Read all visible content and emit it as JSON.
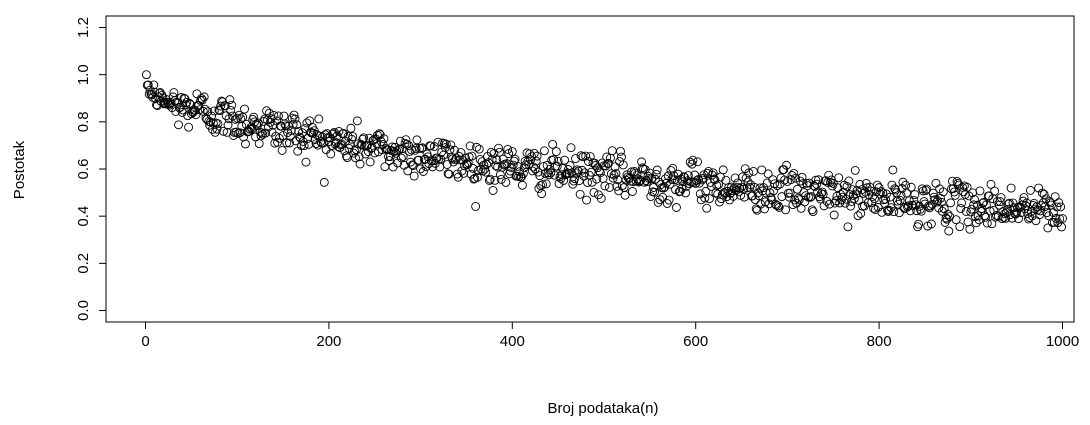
{
  "chart_data": {
    "type": "scatter",
    "title": "",
    "xlabel": "Broj podataka(n)",
    "ylabel": "Postotak",
    "xlim": [
      0,
      1000
    ],
    "ylim": [
      0.0,
      1.2
    ],
    "xticks": [
      0,
      200,
      400,
      600,
      800,
      1000
    ],
    "xtick_labels": [
      "0",
      "200",
      "400",
      "600",
      "800",
      "1000"
    ],
    "yticks": [
      0.0,
      0.2,
      0.4,
      0.6,
      0.8,
      1.0,
      1.2
    ],
    "ytick_labels": [
      "0.0",
      "0.2",
      "0.4",
      "0.6",
      "0.8",
      "1.0",
      "1.2"
    ],
    "grid": false,
    "legend": "none",
    "marker": "open-circle",
    "marker_color": "#000000",
    "n_points": 1000,
    "x": [
      1,
      2,
      3,
      4,
      5,
      6,
      7,
      8,
      9,
      10,
      20,
      30,
      40,
      50,
      60,
      70,
      80,
      90,
      100,
      110,
      120,
      130,
      140,
      150,
      160,
      170,
      180,
      190,
      200,
      210,
      220,
      230,
      240,
      250,
      260,
      270,
      280,
      290,
      300,
      310,
      320,
      330,
      340,
      350,
      360,
      370,
      380,
      390,
      400,
      410,
      420,
      430,
      440,
      450,
      460,
      470,
      480,
      490,
      500,
      510,
      520,
      530,
      540,
      550,
      560,
      570,
      580,
      590,
      600,
      610,
      620,
      630,
      640,
      650,
      660,
      670,
      680,
      690,
      700,
      710,
      720,
      730,
      740,
      750,
      760,
      770,
      780,
      790,
      800,
      810,
      820,
      830,
      840,
      850,
      860,
      870,
      880,
      890,
      900,
      910,
      920,
      930,
      940,
      950,
      960,
      970,
      980,
      990,
      1000
    ],
    "y": [
      0.98,
      0.97,
      0.95,
      0.94,
      0.93,
      0.92,
      0.91,
      0.92,
      0.93,
      0.9,
      0.89,
      0.87,
      0.86,
      0.86,
      0.85,
      0.84,
      0.82,
      0.82,
      0.81,
      0.79,
      0.78,
      0.79,
      0.77,
      0.76,
      0.76,
      0.75,
      0.74,
      0.73,
      0.72,
      0.71,
      0.71,
      0.7,
      0.7,
      0.69,
      0.68,
      0.67,
      0.67,
      0.67,
      0.66,
      0.66,
      0.65,
      0.64,
      0.64,
      0.63,
      0.63,
      0.62,
      0.62,
      0.61,
      0.61,
      0.6,
      0.6,
      0.6,
      0.6,
      0.59,
      0.59,
      0.58,
      0.58,
      0.58,
      0.57,
      0.57,
      0.57,
      0.56,
      0.56,
      0.56,
      0.55,
      0.55,
      0.55,
      0.55,
      0.54,
      0.54,
      0.53,
      0.53,
      0.53,
      0.52,
      0.52,
      0.52,
      0.51,
      0.51,
      0.51,
      0.5,
      0.5,
      0.5,
      0.49,
      0.49,
      0.49,
      0.48,
      0.48,
      0.48,
      0.47,
      0.47,
      0.47,
      0.46,
      0.46,
      0.46,
      0.46,
      0.45,
      0.45,
      0.45,
      0.45,
      0.44,
      0.44,
      0.44,
      0.44,
      0.43,
      0.43,
      0.43,
      0.43,
      0.42,
      0.42
    ]
  }
}
